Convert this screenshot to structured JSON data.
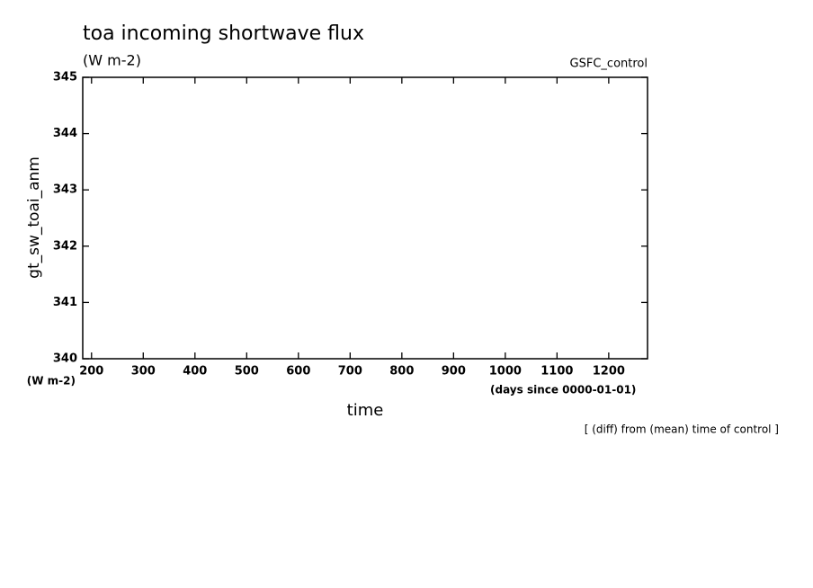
{
  "chart_data": {
    "type": "line",
    "title": "toa incoming shortwave flux",
    "subtitle": "(W m-2)",
    "run_label": "GSFC_control",
    "x_label": "time",
    "x_unit": "(days since 0000-01-01)",
    "y_label": "gt_sw_toai_anm",
    "y_unit": "(W m-2)",
    "footnote": "[ (diff) from (mean) time of control ]",
    "series": [],
    "xlim": [
      183,
      1275
    ],
    "xticks": [
      200,
      300,
      400,
      500,
      600,
      700,
      800,
      900,
      1000,
      1100,
      1200
    ],
    "ylim": [
      340,
      345
    ],
    "yticks": [
      340,
      341,
      342,
      343,
      344,
      345
    ]
  }
}
